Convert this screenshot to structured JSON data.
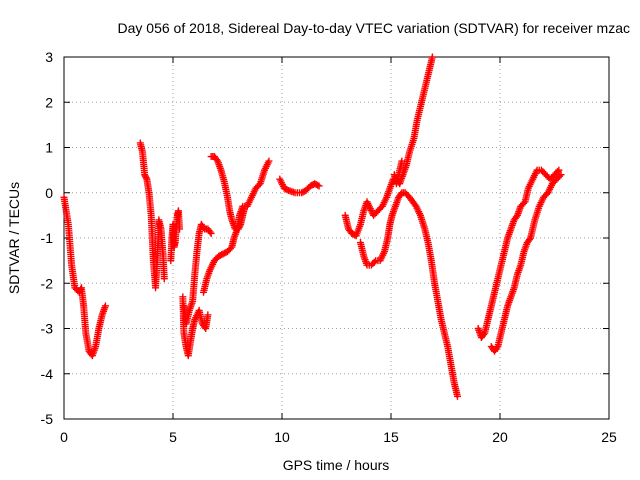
{
  "chart_data": {
    "type": "scatter",
    "title": "Day 056 of 2018, Sidereal Day-to-day VTEC variation (SDTVAR) for receiver mzac",
    "xlabel": "GPS time / hours",
    "ylabel": "SDTVAR / TECUs",
    "xlim": [
      0,
      25
    ],
    "ylim": [
      -5,
      3
    ],
    "xticks": [
      "0",
      "5",
      "10",
      "15",
      "20",
      "25"
    ],
    "yticks": [
      "-5",
      "-4",
      "-3",
      "-2",
      "-1",
      "0",
      "1",
      "2",
      "3"
    ],
    "grid": true,
    "marker": "plus",
    "color": "#ff0000",
    "segments": [
      [
        [
          0.0,
          -0.1
        ],
        [
          0.2,
          -0.7
        ],
        [
          0.35,
          -1.6
        ],
        [
          0.5,
          -2.1
        ],
        [
          0.7,
          -2.2
        ],
        [
          0.8,
          -2.1
        ],
        [
          0.9,
          -2.5
        ],
        [
          1.0,
          -3.1
        ],
        [
          1.15,
          -3.5
        ],
        [
          1.3,
          -3.6
        ],
        [
          1.45,
          -3.4
        ],
        [
          1.6,
          -3.0
        ],
        [
          1.75,
          -2.7
        ],
        [
          1.9,
          -2.5
        ]
      ],
      [
        [
          3.5,
          1.1
        ],
        [
          3.6,
          0.9
        ],
        [
          3.7,
          0.4
        ],
        [
          3.8,
          0.3
        ],
        [
          3.9,
          0.0
        ],
        [
          4.0,
          -0.5
        ],
        [
          4.05,
          -1.0
        ],
        [
          4.1,
          -1.5
        ],
        [
          4.2,
          -2.1
        ],
        [
          4.3,
          -1.3
        ],
        [
          4.35,
          -0.6
        ],
        [
          4.45,
          -0.8
        ],
        [
          4.55,
          -1.4
        ],
        [
          4.6,
          -1.9
        ]
      ],
      [
        [
          4.9,
          -1.5
        ],
        [
          4.95,
          -1.0
        ],
        [
          5.0,
          -0.7
        ],
        [
          5.05,
          -1.2
        ],
        [
          5.1,
          -1.1
        ],
        [
          5.15,
          -0.8
        ],
        [
          5.2,
          -0.5
        ],
        [
          5.25,
          -0.4
        ],
        [
          5.3,
          -0.8
        ]
      ],
      [
        [
          5.45,
          -2.3
        ],
        [
          5.5,
          -3.1
        ],
        [
          5.6,
          -3.4
        ],
        [
          5.7,
          -3.6
        ],
        [
          5.8,
          -3.3
        ],
        [
          5.9,
          -3.0
        ],
        [
          6.0,
          -2.8
        ],
        [
          6.2,
          -2.6
        ],
        [
          6.35,
          -2.9
        ],
        [
          6.5,
          -3.0
        ],
        [
          6.6,
          -2.7
        ]
      ],
      [
        [
          5.5,
          -2.5
        ],
        [
          5.6,
          -2.9
        ],
        [
          5.75,
          -2.6
        ],
        [
          5.9,
          -2.4
        ],
        [
          6.0,
          -1.8
        ],
        [
          6.1,
          -1.3
        ],
        [
          6.2,
          -0.9
        ],
        [
          6.3,
          -0.7
        ],
        [
          6.45,
          -0.8
        ],
        [
          6.6,
          -0.8
        ],
        [
          6.75,
          -0.9
        ]
      ],
      [
        [
          6.4,
          -2.2
        ],
        [
          6.55,
          -1.9
        ],
        [
          6.7,
          -1.7
        ],
        [
          6.9,
          -1.5
        ],
        [
          7.1,
          -1.4
        ],
        [
          7.3,
          -1.35
        ],
        [
          7.5,
          -1.3
        ],
        [
          7.7,
          -1.2
        ],
        [
          7.8,
          -1.0
        ],
        [
          7.95,
          -0.8
        ],
        [
          8.05,
          -0.5
        ],
        [
          8.2,
          -0.3
        ],
        [
          8.4,
          -0.3
        ],
        [
          8.6,
          -0.1
        ],
        [
          8.8,
          0.1
        ],
        [
          9.0,
          0.2
        ],
        [
          9.2,
          0.5
        ],
        [
          9.4,
          0.7
        ]
      ],
      [
        [
          6.75,
          0.8
        ],
        [
          6.9,
          0.8
        ],
        [
          7.05,
          0.7
        ],
        [
          7.2,
          0.5
        ],
        [
          7.35,
          0.25
        ],
        [
          7.5,
          -0.1
        ],
        [
          7.6,
          -0.4
        ],
        [
          7.7,
          -0.6
        ],
        [
          7.85,
          -0.8
        ],
        [
          8.0,
          -0.8
        ],
        [
          8.1,
          -0.7
        ],
        [
          8.2,
          -0.5
        ],
        [
          8.3,
          -0.3
        ]
      ],
      [
        [
          9.9,
          0.3
        ],
        [
          10.1,
          0.1
        ],
        [
          10.3,
          0.05
        ],
        [
          10.6,
          0.0
        ],
        [
          10.9,
          0.0
        ],
        [
          11.1,
          0.05
        ],
        [
          11.3,
          0.15
        ],
        [
          11.5,
          0.2
        ],
        [
          11.7,
          0.15
        ]
      ],
      [
        [
          12.9,
          -0.5
        ],
        [
          13.05,
          -0.8
        ],
        [
          13.2,
          -0.9
        ],
        [
          13.4,
          -0.95
        ],
        [
          13.6,
          -0.7
        ],
        [
          13.75,
          -0.4
        ],
        [
          13.9,
          -0.2
        ],
        [
          14.05,
          -0.35
        ],
        [
          14.2,
          -0.5
        ],
        [
          14.4,
          -0.4
        ],
        [
          14.6,
          -0.3
        ],
        [
          14.8,
          -0.1
        ],
        [
          14.95,
          0.1
        ],
        [
          15.1,
          0.3
        ],
        [
          15.25,
          0.3
        ],
        [
          15.4,
          0.2
        ],
        [
          15.55,
          0.4
        ],
        [
          15.7,
          0.6
        ],
        [
          15.85,
          0.9
        ],
        [
          16.05,
          1.2
        ],
        [
          16.2,
          1.6
        ],
        [
          16.4,
          2.0
        ],
        [
          16.6,
          2.4
        ],
        [
          16.75,
          2.7
        ],
        [
          16.9,
          3.0
        ]
      ],
      [
        [
          13.6,
          -1.1
        ],
        [
          13.75,
          -1.4
        ],
        [
          13.9,
          -1.6
        ],
        [
          14.1,
          -1.6
        ],
        [
          14.3,
          -1.5
        ],
        [
          14.5,
          -1.5
        ],
        [
          14.7,
          -1.3
        ],
        [
          14.85,
          -1.0
        ],
        [
          14.95,
          -0.7
        ],
        [
          15.05,
          -0.5
        ],
        [
          15.2,
          -0.3
        ],
        [
          15.35,
          -0.1
        ],
        [
          15.5,
          0.0
        ],
        [
          15.65,
          0.0
        ],
        [
          15.85,
          -0.1
        ],
        [
          16.0,
          -0.2
        ],
        [
          16.15,
          -0.3
        ],
        [
          16.35,
          -0.5
        ],
        [
          16.55,
          -0.8
        ],
        [
          16.7,
          -1.1
        ],
        [
          16.85,
          -1.5
        ],
        [
          17.0,
          -2.0
        ],
        [
          17.15,
          -2.4
        ],
        [
          17.3,
          -2.8
        ],
        [
          17.45,
          -3.1
        ],
        [
          17.6,
          -3.4
        ],
        [
          17.75,
          -3.8
        ],
        [
          17.9,
          -4.2
        ],
        [
          18.05,
          -4.5
        ]
      ],
      [
        [
          15.15,
          0.4
        ],
        [
          15.25,
          0.2
        ],
        [
          15.35,
          0.4
        ],
        [
          15.5,
          0.7
        ]
      ],
      [
        [
          19.0,
          -3.0
        ],
        [
          19.15,
          -3.2
        ],
        [
          19.3,
          -3.1
        ],
        [
          19.45,
          -2.8
        ],
        [
          19.6,
          -2.5
        ],
        [
          19.75,
          -2.2
        ],
        [
          19.9,
          -1.9
        ],
        [
          20.05,
          -1.6
        ],
        [
          20.2,
          -1.3
        ],
        [
          20.35,
          -1.0
        ],
        [
          20.5,
          -0.8
        ],
        [
          20.65,
          -0.6
        ],
        [
          20.8,
          -0.5
        ],
        [
          20.95,
          -0.3
        ],
        [
          21.15,
          -0.2
        ],
        [
          21.3,
          0.1
        ],
        [
          21.5,
          0.3
        ],
        [
          21.7,
          0.5
        ],
        [
          21.9,
          0.5
        ],
        [
          22.1,
          0.4
        ],
        [
          22.3,
          0.3
        ],
        [
          22.5,
          0.4
        ],
        [
          22.7,
          0.5
        ]
      ],
      [
        [
          19.6,
          -3.4
        ],
        [
          19.75,
          -3.5
        ],
        [
          19.9,
          -3.4
        ],
        [
          20.05,
          -3.1
        ],
        [
          20.2,
          -2.8
        ],
        [
          20.35,
          -2.5
        ],
        [
          20.5,
          -2.3
        ],
        [
          20.65,
          -2.1
        ],
        [
          20.8,
          -1.8
        ],
        [
          20.95,
          -1.6
        ],
        [
          21.1,
          -1.3
        ],
        [
          21.25,
          -1.1
        ],
        [
          21.4,
          -1.0
        ],
        [
          21.6,
          -0.6
        ],
        [
          21.8,
          -0.3
        ],
        [
          22.0,
          -0.1
        ],
        [
          22.2,
          0.0
        ],
        [
          22.4,
          0.2
        ],
        [
          22.6,
          0.3
        ],
        [
          22.8,
          0.4
        ]
      ]
    ]
  }
}
